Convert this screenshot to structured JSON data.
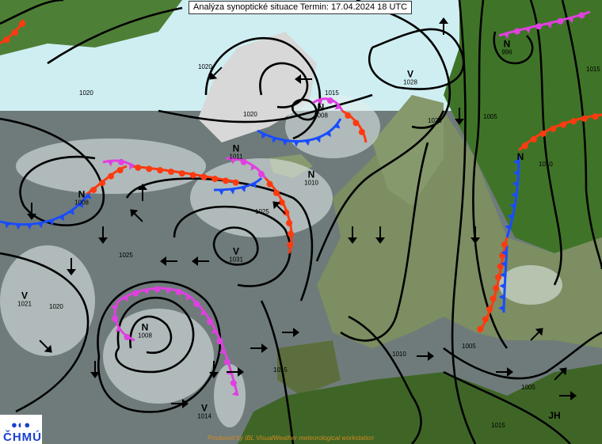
{
  "header": {
    "title": "Analýza synoptické situace Termin: 17.04.2024 18 UTC"
  },
  "logo": {
    "text": "ČHMÚ",
    "symbol": "●◖ ●"
  },
  "footer": {
    "credit": "Produced by IBL VisualWeather meteorological workstation"
  },
  "colors": {
    "cold_front": "#1a4cff",
    "warm_front": "#ff3a10",
    "occluded_front": "#e040e0",
    "isobar": "#000000",
    "ocean": "#6f7b7b",
    "land": "#3f6a2a"
  },
  "pressure_systems": [
    {
      "type": "N",
      "value": "996"
    },
    {
      "type": "V",
      "value": "1028"
    },
    {
      "type": "N",
      "value": "1008"
    },
    {
      "type": "N",
      "value": "1011"
    },
    {
      "type": "N",
      "value": "1010"
    },
    {
      "type": "N",
      "value": "1008"
    },
    {
      "type": "V",
      "value": "1031"
    },
    {
      "type": "V",
      "value": "1021"
    },
    {
      "type": "N",
      "value": "1008"
    },
    {
      "type": "V",
      "value": "1014"
    },
    {
      "type": "N",
      "value": ""
    },
    {
      "type": "JH",
      "value": ""
    }
  ],
  "isobar_labels": [
    "1015",
    "1020",
    "1025",
    "1020",
    "1005",
    "1010",
    "1015",
    "1005",
    "1025",
    "1020",
    "1015",
    "1020",
    "1020",
    "1005",
    "1010",
    "1015"
  ]
}
